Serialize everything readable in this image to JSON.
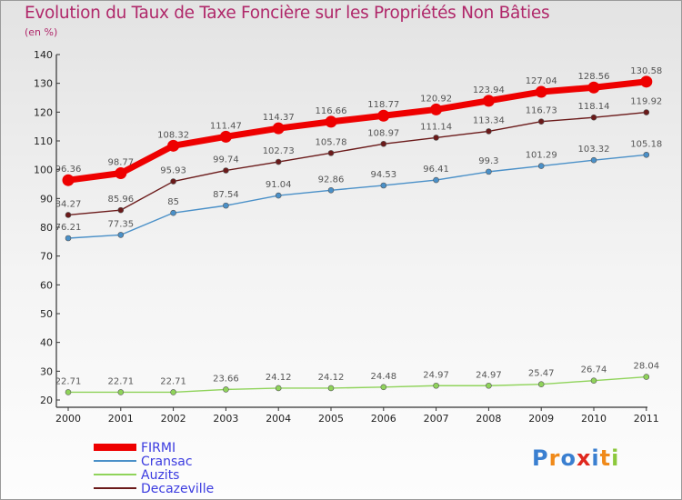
{
  "chart_data": {
    "type": "line",
    "title": "Evolution du Taux de Taxe Foncière sur les Propriétés Non Bâties",
    "ylabel": "(en %)",
    "xlabel": "",
    "categories": [
      "2000",
      "2001",
      "2002",
      "2003",
      "2004",
      "2005",
      "2006",
      "2007",
      "2008",
      "2009",
      "2010",
      "2011"
    ],
    "ylim": [
      20,
      140
    ],
    "yticks": [
      20,
      30,
      40,
      50,
      60,
      70,
      80,
      90,
      100,
      110,
      120,
      130,
      140
    ],
    "grid": false,
    "legend_position": "bottom-left",
    "series": [
      {
        "name": "FIRMI",
        "color": "#ee0000",
        "values": [
          96.36,
          98.77,
          108.32,
          111.47,
          114.37,
          116.66,
          118.77,
          120.92,
          123.94,
          127.04,
          128.56,
          130.58
        ],
        "labels": [
          "96.36",
          "98.77",
          "108.32",
          "111.47",
          "114.37",
          "116.66",
          "118.77",
          "120.92",
          "123.94",
          "127.04",
          "128.56",
          "130.58"
        ]
      },
      {
        "name": "Cransac",
        "color": "#4a90c8",
        "values": [
          76.21,
          77.35,
          85,
          87.54,
          91.04,
          92.86,
          94.53,
          96.41,
          99.3,
          101.29,
          103.32,
          105.18
        ],
        "labels": [
          "76.21",
          "77.35",
          "85",
          "87.54",
          "91.04",
          "92.86",
          "94.53",
          "96.41",
          "99.3",
          "101.29",
          "103.32",
          "105.18"
        ]
      },
      {
        "name": "Auzits",
        "color": "#8fd35a",
        "values": [
          22.71,
          22.71,
          22.71,
          23.66,
          24.12,
          24.12,
          24.48,
          24.97,
          24.97,
          25.47,
          26.74,
          28.04
        ],
        "labels": [
          "22.71",
          "22.71",
          "22.71",
          "23.66",
          "24.12",
          "24.12",
          "24.48",
          "24.97",
          "24.97",
          "25.47",
          "26.74",
          "28.04"
        ]
      },
      {
        "name": "Decazeville",
        "color": "#6b1a1a",
        "values": [
          84.27,
          85.96,
          95.93,
          99.74,
          102.73,
          105.78,
          108.97,
          111.14,
          113.34,
          116.73,
          118.14,
          119.92
        ],
        "labels": [
          "84.27",
          "85.96",
          "95.93",
          "99.74",
          "102.73",
          "105.78",
          "108.97",
          "111.14",
          "113.34",
          "116.73",
          "118.14",
          "119.92"
        ]
      }
    ]
  },
  "brand": {
    "text": "Proxiti",
    "letters": [
      "P",
      "r",
      "o",
      "x",
      "i",
      "t",
      "i"
    ],
    "colors": [
      "#3a7fd0",
      "#f08a1a",
      "#3a7fd0",
      "#e0281e",
      "#3a7fd0",
      "#f08a1a",
      "#8cc83c"
    ]
  }
}
